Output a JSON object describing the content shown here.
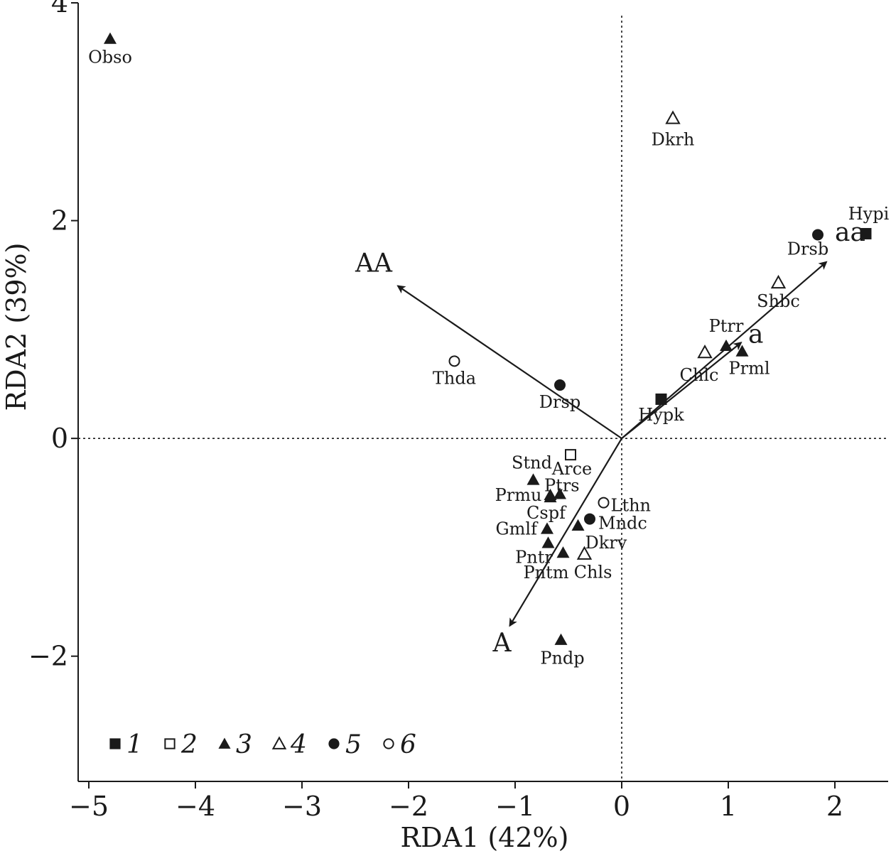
{
  "chart_data": {
    "type": "scatter",
    "title": "",
    "xlabel": "RDA1 (42%)",
    "ylabel": "RDA2 (39%)",
    "xlim": [
      -5.1,
      2.5
    ],
    "ylim": [
      -3.15,
      4.0
    ],
    "x_ticks": [
      -5,
      -4,
      -3,
      -2,
      -1,
      0,
      1,
      2
    ],
    "y_ticks": [
      -2,
      0,
      2,
      4
    ],
    "x_tick_labels": [
      "−5",
      "−4",
      "−3",
      "−2",
      "−1",
      "0",
      "1",
      "2"
    ],
    "y_tick_labels": [
      "−2",
      "0",
      "2",
      "4"
    ],
    "reference_lines": {
      "x": 0,
      "y": 0,
      "style": "dotted"
    },
    "legend": {
      "position": "bottom-left",
      "entries": [
        {
          "group": 1,
          "label": "1",
          "marker": "filled-square"
        },
        {
          "group": 2,
          "label": "2",
          "marker": "open-square"
        },
        {
          "group": 3,
          "label": "3",
          "marker": "filled-triangle"
        },
        {
          "group": 4,
          "label": "4",
          "marker": "open-triangle"
        },
        {
          "group": 5,
          "label": "5",
          "marker": "filled-circle"
        },
        {
          "group": 6,
          "label": "6",
          "marker": "open-circle"
        }
      ]
    },
    "vectors": [
      {
        "label": "AA",
        "x": -2.1,
        "y": 1.4
      },
      {
        "label": "aa",
        "x": 1.92,
        "y": 1.62
      },
      {
        "label": "a",
        "x": 1.12,
        "y": 0.88
      },
      {
        "label": "A",
        "x": -1.05,
        "y": -1.72
      }
    ],
    "points": [
      {
        "label": "Obso",
        "x": -4.8,
        "y": 3.67,
        "group": 3
      },
      {
        "label": "Dkrh",
        "x": 0.48,
        "y": 2.94,
        "group": 4
      },
      {
        "label": "Hypi",
        "x": 2.29,
        "y": 1.88,
        "group": 1
      },
      {
        "label": "Drsb",
        "x": 1.84,
        "y": 1.87,
        "group": 5
      },
      {
        "label": "Shbc",
        "x": 1.47,
        "y": 1.43,
        "group": 4
      },
      {
        "label": "Ptrr",
        "x": 0.98,
        "y": 0.85,
        "group": 3
      },
      {
        "label": "Prml",
        "x": 1.13,
        "y": 0.8,
        "group": 3
      },
      {
        "label": "Chlc",
        "x": 0.78,
        "y": 0.79,
        "group": 4
      },
      {
        "label": "Thda",
        "x": -1.57,
        "y": 0.71,
        "group": 6
      },
      {
        "label": "Drsp",
        "x": -0.58,
        "y": 0.49,
        "group": 5
      },
      {
        "label": "Hypk",
        "x": 0.37,
        "y": 0.36,
        "group": 1
      },
      {
        "label": "Arce",
        "x": -0.48,
        "y": -0.15,
        "group": 2
      },
      {
        "label": "Stnd",
        "x": -0.83,
        "y": -0.38,
        "group": 3
      },
      {
        "label": "Ptrs",
        "x": -0.58,
        "y": -0.51,
        "group": 3
      },
      {
        "label": "Prmu",
        "x": -0.67,
        "y": -0.52,
        "group": 3
      },
      {
        "label": "Cspf",
        "x": -0.67,
        "y": -0.54,
        "group": 3
      },
      {
        "label": "Lthn",
        "x": -0.17,
        "y": -0.59,
        "group": 6
      },
      {
        "label": "Mndc",
        "x": -0.3,
        "y": -0.74,
        "group": 5
      },
      {
        "label": "Gmlf",
        "x": -0.7,
        "y": -0.83,
        "group": 3
      },
      {
        "label": "Dkrv",
        "x": -0.41,
        "y": -0.8,
        "group": 3
      },
      {
        "label": "Pntr",
        "x": -0.69,
        "y": -0.96,
        "group": 3
      },
      {
        "label": "Pntm",
        "x": -0.55,
        "y": -1.05,
        "group": 3
      },
      {
        "label": "Chls",
        "x": -0.35,
        "y": -1.06,
        "group": 4
      },
      {
        "label": "Pndp",
        "x": -0.57,
        "y": -1.85,
        "group": 3
      }
    ]
  }
}
